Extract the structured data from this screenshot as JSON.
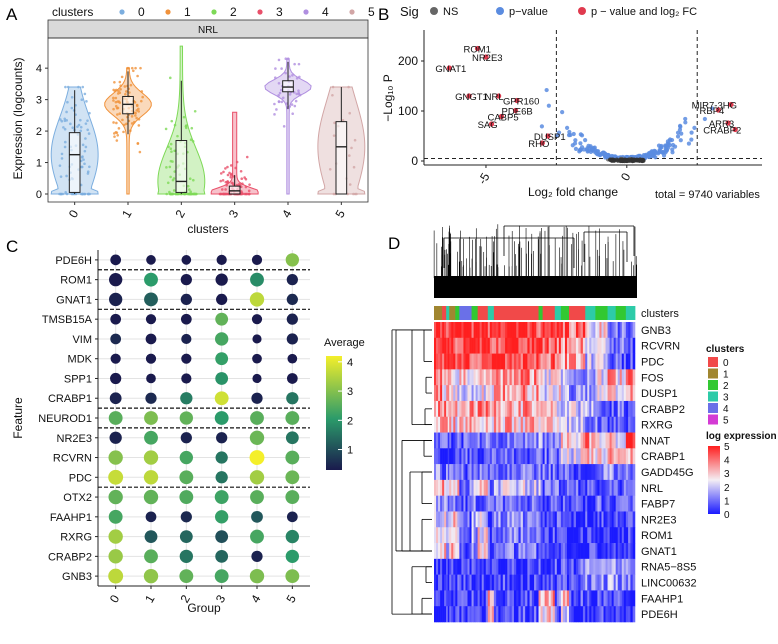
{
  "panels": {
    "a": {
      "label": "A"
    },
    "b": {
      "label": "B"
    },
    "c": {
      "label": "C"
    },
    "d": {
      "label": "D"
    }
  },
  "colors": {
    "clusters": [
      "#7CAEDF",
      "#F0923B",
      "#7ED957",
      "#E9506A",
      "#B08FE0",
      "#D2A6A6"
    ],
    "sig": {
      "NS": "#666666",
      "p-value": "#5B8CE0",
      "p-value and log2 FC": "#E03A4E"
    },
    "heat_low": "#1a1aff",
    "heat_mid": "#f4eef4",
    "heat_high": "#ff1f1f",
    "dot_low": "#1a1a4d",
    "dot_mid": "#2b9b6a",
    "dot_high": "#f4ef2a"
  },
  "chart_data": [
    {
      "id": "violin",
      "type": "violin",
      "title": "NRL",
      "xlabel": "clusters",
      "ylabel": "Expression (logcounts)",
      "legend_title": "clusters",
      "legend_labels": [
        "0",
        "1",
        "2",
        "3",
        "4",
        "5"
      ],
      "categories": [
        "0",
        "1",
        "2",
        "3",
        "4",
        "5"
      ],
      "ylim": [
        0,
        4.8
      ],
      "yticks": [
        0,
        1,
        2,
        3,
        4
      ],
      "ytick_labels": [
        "0",
        "1",
        "2",
        "3",
        "4"
      ],
      "box": [
        {
          "q1": 0.05,
          "median": 1.25,
          "q3": 1.95,
          "lo": 0,
          "hi": 3.3,
          "max": 3.4
        },
        {
          "q1": 2.55,
          "median": 2.85,
          "q3": 3.1,
          "lo": 1.9,
          "hi": 3.9,
          "max": 4.0
        },
        {
          "q1": 0.05,
          "median": 0.4,
          "q3": 1.7,
          "lo": 0,
          "hi": 3.6,
          "max": 4.7
        },
        {
          "q1": 0.0,
          "median": 0.1,
          "q3": 0.25,
          "lo": 0,
          "hi": 0.6,
          "max": 2.6
        },
        {
          "q1": 3.25,
          "median": 3.4,
          "q3": 3.6,
          "lo": 2.7,
          "hi": 4.2,
          "max": 4.3
        },
        {
          "q1": 0.0,
          "median": 1.5,
          "q3": 2.3,
          "lo": 0,
          "hi": 3.4,
          "max": 3.4
        }
      ]
    },
    {
      "id": "volcano",
      "type": "scatter",
      "legend_title": "Sig",
      "legend_labels": [
        "NS",
        "p−value",
        "p − value and log₂ FC"
      ],
      "xlabel": "Log₂ fold change",
      "ylabel": "−Log₁₀ P",
      "xlim": [
        -7.2,
        4.8
      ],
      "ylim": [
        -8,
        262
      ],
      "xticks": [
        -5,
        0
      ],
      "xtick_labels": [
        "-5",
        "0"
      ],
      "yticks": [
        0,
        100,
        200
      ],
      "ytick_labels": [
        "0",
        "100",
        "200"
      ],
      "vlines": [
        -2.5,
        2.5
      ],
      "hline": 5,
      "caption": "total = 9740 variables",
      "labeled_points": [
        {
          "gene": "ROM1",
          "x": -5.3,
          "y": 225
        },
        {
          "gene": "NR2E3",
          "x": -5.0,
          "y": 208
        },
        {
          "gene": "GNAT1",
          "x": -6.3,
          "y": 186
        },
        {
          "gene": "NRL",
          "x": -4.55,
          "y": 130
        },
        {
          "gene": "GPR160",
          "x": -3.9,
          "y": 121
        },
        {
          "gene": "GNGT1",
          "x": -5.6,
          "y": 130
        },
        {
          "gene": "PDE6B",
          "x": -3.95,
          "y": 101
        },
        {
          "gene": "CABP5",
          "x": -4.45,
          "y": 89
        },
        {
          "gene": "SAG",
          "x": -4.8,
          "y": 74
        },
        {
          "gene": "DUSP1",
          "x": -2.8,
          "y": 50
        },
        {
          "gene": "RHO",
          "x": -3.0,
          "y": 36
        },
        {
          "gene": "MIR7-3HG",
          "x": 3.7,
          "y": 113
        },
        {
          "gene": "RBP4",
          "x": 3.25,
          "y": 102
        },
        {
          "gene": "ARR3",
          "x": 3.6,
          "y": 76
        },
        {
          "gene": "CRABP2",
          "x": 3.85,
          "y": 63
        }
      ]
    },
    {
      "id": "dotplot",
      "type": "dot",
      "xlabel": "Group",
      "ylabel": "Feature",
      "legend_title": "Average",
      "legend_ticks": [
        1,
        2,
        3,
        4
      ],
      "legend_tick_labels": [
        "1",
        "2",
        "3",
        "4"
      ],
      "groups": [
        "0",
        "1",
        "2",
        "3",
        "4",
        "5"
      ],
      "features": [
        "PDE6H",
        "ROM1",
        "GNAT1",
        "TMSB15A",
        "VIM",
        "MDK",
        "SPP1",
        "CRABP1",
        "NEUROD1",
        "NR2E3",
        "RCVRN",
        "PDC",
        "OTX2",
        "FAAHP1",
        "RXRG",
        "CRABP2",
        "GNB3"
      ],
      "separators_after": [
        0,
        2,
        7,
        8,
        11
      ],
      "avg": [
        [
          0.3,
          0.3,
          0.3,
          0.3,
          0.3,
          3.0
        ],
        [
          0.3,
          2.0,
          0.3,
          0.3,
          1.8,
          0.4
        ],
        [
          0.4,
          1.2,
          0.4,
          0.3,
          3.6,
          0.5
        ],
        [
          0.3,
          0.3,
          0.3,
          2.6,
          0.3,
          0.4
        ],
        [
          0.5,
          0.3,
          0.4,
          2.3,
          0.3,
          0.4
        ],
        [
          0.3,
          0.3,
          0.3,
          2.1,
          0.3,
          0.3
        ],
        [
          0.3,
          0.3,
          0.3,
          1.9,
          0.3,
          0.3
        ],
        [
          0.4,
          0.5,
          1.6,
          3.8,
          0.4,
          1.5
        ],
        [
          2.5,
          2.9,
          2.6,
          2.0,
          2.5,
          2.5
        ],
        [
          0.4,
          2.3,
          0.4,
          0.4,
          2.7,
          1.5
        ],
        [
          3.0,
          3.3,
          2.3,
          1.5,
          4.2,
          2.5
        ],
        [
          3.7,
          3.6,
          2.5,
          1.5,
          3.3,
          2.7
        ],
        [
          2.6,
          2.6,
          2.4,
          2.2,
          2.5,
          2.5
        ],
        [
          2.3,
          0.4,
          0.5,
          2.1,
          1.1,
          0.4
        ],
        [
          3.3,
          1.1,
          1.3,
          1.0,
          2.3,
          1.7
        ],
        [
          3.2,
          2.5,
          1.5,
          1.3,
          0.4,
          2.0
        ],
        [
          3.6,
          3.1,
          2.6,
          2.3,
          2.9,
          2.9
        ]
      ],
      "size": [
        [
          0.55,
          0.45,
          0.45,
          0.5,
          0.5,
          0.8
        ],
        [
          0.8,
          0.85,
          0.6,
          0.7,
          0.85,
          0.6
        ],
        [
          0.8,
          0.85,
          0.6,
          0.6,
          0.9,
          0.6
        ],
        [
          0.55,
          0.5,
          0.55,
          0.75,
          0.5,
          0.6
        ],
        [
          0.55,
          0.55,
          0.5,
          0.8,
          0.4,
          0.6
        ],
        [
          0.5,
          0.5,
          0.5,
          0.75,
          0.45,
          0.45
        ],
        [
          0.6,
          0.45,
          0.5,
          0.75,
          0.4,
          0.55
        ],
        [
          0.65,
          0.6,
          0.7,
          0.85,
          0.6,
          0.7
        ],
        [
          0.85,
          0.85,
          0.8,
          0.85,
          0.85,
          0.85
        ],
        [
          0.7,
          0.85,
          0.6,
          0.6,
          0.9,
          0.75
        ],
        [
          0.9,
          0.9,
          0.8,
          0.7,
          0.95,
          0.85
        ],
        [
          0.95,
          0.9,
          0.85,
          0.7,
          0.9,
          0.85
        ],
        [
          0.9,
          0.9,
          0.85,
          0.85,
          0.85,
          0.85
        ],
        [
          0.85,
          0.55,
          0.6,
          0.8,
          0.65,
          0.55
        ],
        [
          0.9,
          0.75,
          0.75,
          0.75,
          0.85,
          0.8
        ],
        [
          0.9,
          0.85,
          0.8,
          0.75,
          0.6,
          0.8
        ],
        [
          0.95,
          0.9,
          0.85,
          0.85,
          0.9,
          0.85
        ]
      ]
    },
    {
      "id": "heatmap",
      "type": "heatmap",
      "annotation_label": "clusters",
      "genes": [
        "GNB3",
        "RCVRN",
        "PDC",
        "FOS",
        "DUSP1",
        "CRABP2",
        "RXRG",
        "NNAT",
        "CRABP1",
        "GADD45G",
        "NRL",
        "FABP7",
        "NR2E3",
        "ROM1",
        "GNAT1",
        "RNA5−8S5",
        "LINC00632",
        "FAAHP1",
        "PDE6H"
      ],
      "cluster_legend_title": "clusters",
      "cluster_legend_labels": [
        "0",
        "1",
        "2",
        "3",
        "4",
        "5"
      ],
      "cluster_legend_colors": [
        "#F14949",
        "#A08630",
        "#32C832",
        "#2DCBA8",
        "#6A70E8",
        "#D43BD4"
      ],
      "expression_legend_title": "log expression",
      "expression_ticks": [
        0,
        1,
        2,
        3,
        4,
        5
      ],
      "expression_tick_labels": [
        "0",
        "1",
        "2",
        "3",
        "4",
        "5"
      ],
      "column_groups": [
        {
          "cluster": 1,
          "frac": 0.04
        },
        {
          "cluster": 0,
          "frac": 0.02
        },
        {
          "cluster": 3,
          "frac": 0.015
        },
        {
          "cluster": 1,
          "frac": 0.03
        },
        {
          "cluster": 2,
          "frac": 0.02
        },
        {
          "cluster": 4,
          "frac": 0.06
        },
        {
          "cluster": 2,
          "frac": 0.03
        },
        {
          "cluster": 0,
          "frac": 0.05
        },
        {
          "cluster": 3,
          "frac": 0.03
        },
        {
          "cluster": 0,
          "frac": 0.22
        },
        {
          "cluster": 2,
          "frac": 0.02
        },
        {
          "cluster": 0,
          "frac": 0.06
        },
        {
          "cluster": 3,
          "frac": 0.03
        },
        {
          "cluster": 2,
          "frac": 0.04
        },
        {
          "cluster": 0,
          "frac": 0.08
        },
        {
          "cluster": 3,
          "frac": 0.05
        },
        {
          "cluster": 2,
          "frac": 0.06
        },
        {
          "cluster": 3,
          "frac": 0.04
        },
        {
          "cluster": 2,
          "frac": 0.05
        },
        {
          "cluster": 3,
          "frac": 0.045
        }
      ],
      "mean_profile": [
        [
          4.5,
          4.6,
          4.4,
          4.5,
          4.3,
          4.4,
          4.5,
          4.6,
          4.3,
          4.4,
          4.2,
          4.0,
          3.8,
          3.9,
          3.6,
          2.5,
          2.8,
          1.5,
          1.2,
          0.8
        ],
        [
          4.4,
          4.5,
          4.3,
          4.4,
          4.2,
          4.3,
          4.2,
          4.5,
          4.1,
          4.3,
          4.0,
          3.9,
          3.6,
          3.5,
          3.4,
          2.2,
          2.6,
          1.2,
          1.0,
          0.6
        ],
        [
          4.5,
          4.4,
          4.2,
          4.3,
          4.0,
          4.1,
          4.0,
          4.2,
          4.0,
          4.2,
          3.9,
          3.7,
          3.5,
          3.2,
          3.0,
          1.8,
          2.3,
          1.0,
          0.8,
          0.5
        ],
        [
          3.8,
          3.2,
          3.6,
          3.0,
          2.4,
          2.6,
          2.0,
          2.6,
          3.0,
          3.4,
          3.0,
          2.5,
          2.8,
          2.0,
          1.6,
          1.8,
          2.4,
          3.2,
          2.6,
          3.4
        ],
        [
          3.6,
          2.8,
          3.4,
          2.6,
          2.0,
          2.2,
          1.8,
          2.4,
          2.8,
          3.2,
          2.6,
          2.2,
          2.6,
          1.8,
          1.4,
          1.5,
          2.0,
          2.8,
          2.2,
          3.0
        ],
        [
          3.4,
          3.6,
          3.2,
          3.4,
          2.8,
          3.0,
          3.2,
          3.4,
          3.0,
          3.2,
          3.0,
          2.8,
          2.4,
          2.2,
          2.0,
          1.6,
          1.2,
          0.8,
          1.0,
          0.6
        ],
        [
          3.2,
          3.0,
          3.2,
          3.0,
          2.6,
          2.8,
          2.8,
          3.0,
          2.8,
          3.0,
          2.8,
          2.6,
          2.2,
          2.0,
          1.8,
          1.4,
          1.0,
          0.7,
          0.8,
          0.5
        ],
        [
          0.6,
          0.8,
          0.6,
          0.7,
          1.0,
          0.8,
          1.2,
          0.9,
          1.0,
          0.9,
          1.4,
          1.2,
          1.6,
          2.8,
          2.6,
          3.4,
          2.8,
          3.6,
          2.6,
          3.8
        ],
        [
          0.5,
          0.6,
          0.5,
          0.6,
          0.8,
          0.6,
          1.0,
          0.7,
          0.8,
          0.7,
          1.0,
          0.9,
          1.2,
          2.4,
          2.2,
          3.0,
          2.4,
          3.2,
          2.4,
          3.4
        ],
        [
          1.4,
          1.0,
          1.2,
          0.9,
          0.8,
          0.7,
          0.9,
          1.2,
          1.0,
          1.2,
          1.0,
          0.9,
          1.1,
          0.9,
          0.8,
          0.9,
          1.2,
          1.4,
          1.0,
          1.3
        ],
        [
          3.2,
          3.0,
          2.2,
          3.0,
          2.6,
          1.0,
          2.4,
          3.2,
          0.8,
          2.0,
          1.6,
          0.9,
          1.0,
          0.8,
          0.7,
          0.6,
          0.8,
          0.6,
          0.6,
          0.5
        ],
        [
          1.6,
          1.2,
          1.0,
          1.2,
          1.4,
          0.6,
          1.2,
          1.0,
          0.8,
          0.9,
          0.8,
          0.6,
          0.7,
          0.6,
          0.5,
          0.6,
          0.8,
          0.6,
          0.5,
          0.6
        ],
        [
          2.2,
          2.6,
          1.4,
          2.8,
          2.0,
          0.6,
          1.8,
          2.4,
          0.5,
          1.4,
          1.0,
          0.6,
          0.7,
          0.5,
          0.4,
          0.4,
          0.5,
          0.4,
          0.4,
          0.3
        ],
        [
          2.4,
          2.8,
          1.2,
          3.0,
          2.2,
          0.5,
          1.6,
          2.6,
          0.4,
          1.2,
          0.8,
          0.5,
          0.6,
          0.4,
          0.3,
          0.3,
          0.4,
          0.3,
          0.3,
          0.3
        ],
        [
          2.6,
          3.0,
          1.0,
          3.2,
          2.4,
          0.4,
          1.4,
          2.8,
          0.4,
          1.0,
          0.7,
          0.4,
          0.5,
          0.3,
          0.3,
          0.3,
          0.3,
          0.3,
          0.3,
          0.2
        ],
        [
          0.3,
          0.3,
          0.3,
          0.3,
          0.3,
          0.3,
          0.3,
          0.3,
          0.4,
          0.4,
          0.4,
          0.4,
          0.5,
          0.6,
          0.8,
          1.2,
          1.0,
          1.4,
          1.2,
          1.0
        ],
        [
          0.3,
          0.3,
          0.3,
          0.3,
          0.3,
          0.3,
          0.4,
          0.3,
          0.4,
          0.4,
          0.5,
          0.4,
          0.6,
          0.7,
          0.9,
          1.4,
          1.2,
          1.6,
          1.4,
          1.2
        ],
        [
          0.3,
          0.3,
          0.3,
          0.3,
          0.4,
          0.3,
          0.4,
          0.3,
          3.4,
          0.6,
          2.8,
          3.2,
          0.8,
          3.0,
          0.6,
          0.4,
          0.5,
          0.4,
          0.4,
          0.3
        ],
        [
          0.3,
          0.3,
          0.3,
          0.3,
          0.3,
          0.3,
          0.4,
          0.3,
          2.6,
          0.5,
          2.2,
          2.6,
          0.6,
          2.4,
          0.5,
          0.4,
          0.4,
          0.3,
          0.3,
          0.3
        ]
      ]
    }
  ]
}
